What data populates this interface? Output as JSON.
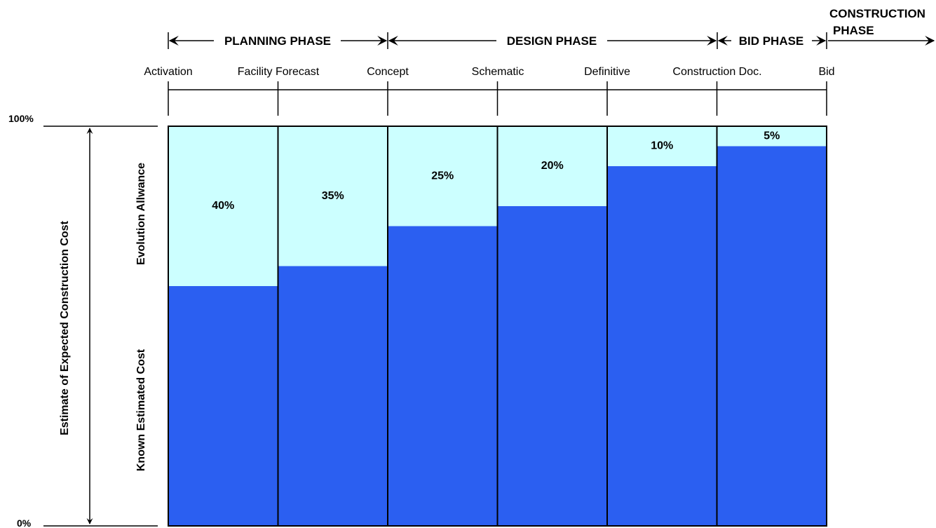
{
  "chart_data": {
    "type": "bar",
    "stacked": true,
    "categories": [
      "",
      "",
      "",
      "",
      "",
      ""
    ],
    "series": [
      {
        "name": "Known Estimated Cost",
        "values": [
          60,
          65,
          75,
          80,
          90,
          95
        ],
        "color": "#2b5ff1"
      },
      {
        "name": "Evolution Allwance",
        "values": [
          40,
          35,
          25,
          20,
          10,
          5
        ],
        "color": "#ccffff"
      }
    ],
    "data_labels": [
      "40%",
      "35%",
      "25%",
      "20%",
      "10%",
      "5%"
    ],
    "milestones": [
      "Activation",
      "Facility Forecast",
      "Concept",
      "Schematic",
      "Definitive",
      "Construction Doc.",
      "Bid"
    ],
    "phases": [
      "PLANNING PHASE",
      "DESIGN PHASE",
      "BID PHASE",
      "CONSTRUCTION",
      "PHASE"
    ],
    "ylabel": "Estimate of Expected Construction Cost",
    "yticks": [
      "100%",
      "0%"
    ],
    "ylim": [
      0,
      100
    ],
    "legend": "left, rotated"
  }
}
